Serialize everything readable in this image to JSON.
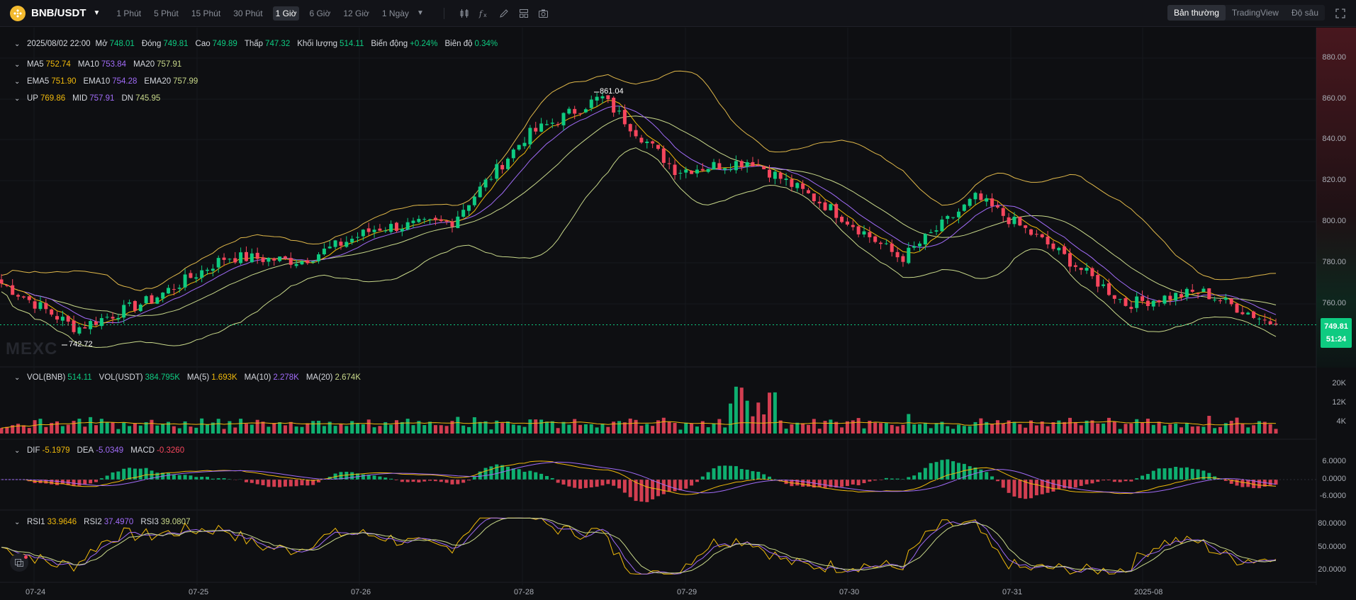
{
  "toolbar": {
    "pair": "BNB/USDT",
    "timeframes": [
      "1 Phút",
      "5 Phút",
      "15 Phút",
      "30 Phút",
      "1 Giờ",
      "6 Giờ",
      "12 Giờ",
      "1 Ngày"
    ],
    "active_timeframe": "1 Giờ",
    "modes": [
      "Bản thường",
      "TradingView",
      "Độ sâu"
    ],
    "active_mode": "Bản thường",
    "tool_icons": [
      "candle-type-icon",
      "indicator-fx-icon",
      "draw-pen-icon",
      "layout-grid-icon",
      "camera-icon"
    ]
  },
  "ohlc": {
    "date": "2025/08/02 22:00",
    "open_label": "Mở",
    "open": "748.01",
    "close_label": "Đóng",
    "close": "749.81",
    "high_label": "Cao",
    "high": "749.89",
    "low_label": "Thấp",
    "low": "747.32",
    "volume_label": "Khối lượng",
    "volume": "514.11",
    "change_label": "Biến động",
    "change": "+0.24%",
    "amplitude_label": "Biên độ",
    "amplitude": "0.34%"
  },
  "ma": {
    "ma5_label": "MA5",
    "ma5": "752.74",
    "ma10_label": "MA10",
    "ma10": "753.84",
    "ma20_label": "MA20",
    "ma20": "757.91"
  },
  "ema": {
    "ema5_label": "EMA5",
    "ema5": "751.90",
    "ema10_label": "EMA10",
    "ema10": "754.28",
    "ema20_label": "EMA20",
    "ema20": "757.99"
  },
  "boll": {
    "up_label": "UP",
    "up": "769.86",
    "mid_label": "MID",
    "mid": "757.91",
    "dn_label": "DN",
    "dn": "745.95"
  },
  "vol": {
    "vol_bnb_label": "VOL(BNB)",
    "vol_bnb": "514.11",
    "vol_usdt_label": "VOL(USDT)",
    "vol_usdt": "384.795K",
    "ma5_label": "MA(5)",
    "ma5": "1.693K",
    "ma10_label": "MA(10)",
    "ma10": "2.278K",
    "ma20_label": "MA(20)",
    "ma20": "2.674K"
  },
  "macd": {
    "dif_label": "DIF",
    "dif": "-5.1979",
    "dea_label": "DEA",
    "dea": "-5.0349",
    "macd_label": "MACD",
    "macd": "-0.3260"
  },
  "rsi": {
    "rsi1_label": "RSI1",
    "rsi1": "33.9646",
    "rsi2_label": "RSI2",
    "rsi2": "37.4970",
    "rsi3_label": "RSI3",
    "rsi3": "39.0807"
  },
  "price_axis": [
    "880.00",
    "860.00",
    "840.00",
    "820.00",
    "800.00",
    "780.00",
    "760.00"
  ],
  "vol_axis": [
    "20K",
    "12K",
    "4K"
  ],
  "macd_axis": [
    "6.0000",
    "0.0000",
    "-6.0000"
  ],
  "rsi_axis": [
    "80.0000",
    "50.0000",
    "20.0000"
  ],
  "dates": [
    "07-24",
    "07-25",
    "07-26",
    "07-28",
    "07-29",
    "07-30",
    "07-31",
    "2025-08"
  ],
  "last_price": "749.81",
  "countdown": "51:24",
  "high_mark": "861.04",
  "low_mark": "742.72",
  "watermark": "MEXC",
  "colors": {
    "up": "#0ecb81",
    "down": "#f6465d",
    "ma5": "#f0b90b",
    "ma10": "#a06bf7",
    "ma20": "#c8d88a",
    "boll": "#e0b84a"
  },
  "chart_data": {
    "type": "candlestick",
    "price_ylim": [
      740,
      885
    ],
    "anchors": [
      {
        "date": "07-24",
        "price": 770
      },
      {
        "date": "07-24",
        "price": 748
      },
      {
        "date": "07-25",
        "price": 762
      },
      {
        "date": "07-25",
        "price": 783
      },
      {
        "date": "07-26",
        "price": 781
      },
      {
        "date": "07-26",
        "price": 797
      },
      {
        "date": "07-27",
        "price": 800
      },
      {
        "date": "07-28",
        "price": 842
      },
      {
        "date": "07-28",
        "price": 861
      },
      {
        "date": "07-29",
        "price": 825
      },
      {
        "date": "07-29",
        "price": 830
      },
      {
        "date": "07-30",
        "price": 808
      },
      {
        "date": "07-30",
        "price": 782
      },
      {
        "date": "07-31",
        "price": 812
      },
      {
        "date": "07-31",
        "price": 788
      },
      {
        "date": "08-01",
        "price": 760
      },
      {
        "date": "08-02",
        "price": 766
      },
      {
        "date": "08-02",
        "price": 749.81
      }
    ]
  }
}
